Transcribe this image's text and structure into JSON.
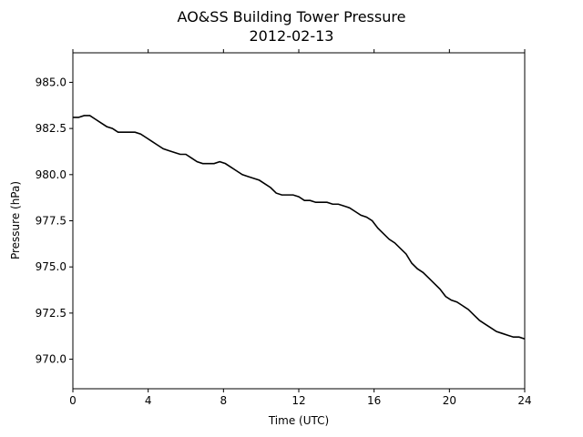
{
  "chart_data": {
    "type": "line",
    "title": "AO&SS Building Tower Pressure",
    "subtitle": "2012-02-13",
    "xlabel": "Time (UTC)",
    "ylabel": "Pressure (hPa)",
    "xlim": [
      0,
      24
    ],
    "ylim": [
      968.4,
      986.6
    ],
    "xticks": [
      0,
      4,
      8,
      12,
      16,
      20,
      24
    ],
    "xtick_labels": [
      "0",
      "4",
      "8",
      "12",
      "16",
      "20",
      "24"
    ],
    "yticks": [
      970.0,
      972.5,
      975.0,
      977.5,
      980.0,
      982.5,
      985.0
    ],
    "ytick_labels": [
      "970.0",
      "972.5",
      "975.0",
      "977.5",
      "980.0",
      "982.5",
      "985.0"
    ],
    "grid": false,
    "legend": "none",
    "line_color": "#000000",
    "series": [
      {
        "x": [
          0,
          0.3,
          0.6,
          0.9,
          1.2,
          1.5,
          1.8,
          2.1,
          2.4,
          2.7,
          3.0,
          3.3,
          3.6,
          3.9,
          4.2,
          4.5,
          4.8,
          5.1,
          5.4,
          5.7,
          6.0,
          6.3,
          6.6,
          6.9,
          7.2,
          7.5,
          7.8,
          8.1,
          8.4,
          8.7,
          9.0,
          9.3,
          9.6,
          9.9,
          10.2,
          10.5,
          10.8,
          11.1,
          11.4,
          11.7,
          12.0,
          12.3,
          12.6,
          12.9,
          13.2,
          13.5,
          13.8,
          14.1,
          14.4,
          14.7,
          15.0,
          15.3,
          15.6,
          15.9,
          16.2,
          16.5,
          16.8,
          17.1,
          17.4,
          17.7,
          18.0,
          18.3,
          18.6,
          18.9,
          19.2,
          19.5,
          19.8,
          20.1,
          20.4,
          20.7,
          21.0,
          21.3,
          21.6,
          21.9,
          22.2,
          22.5,
          22.8,
          23.1,
          23.4,
          23.7,
          24.0
        ],
        "values": [
          983.1,
          983.1,
          983.2,
          983.2,
          983.0,
          982.8,
          982.6,
          982.5,
          982.3,
          982.3,
          982.3,
          982.3,
          982.2,
          982.0,
          981.8,
          981.6,
          981.4,
          981.3,
          981.2,
          981.1,
          981.1,
          980.9,
          980.7,
          980.6,
          980.6,
          980.6,
          980.7,
          980.6,
          980.4,
          980.2,
          980.0,
          979.9,
          979.8,
          979.7,
          979.5,
          979.3,
          979.0,
          978.9,
          978.9,
          978.9,
          978.8,
          978.6,
          978.6,
          978.5,
          978.5,
          978.5,
          978.4,
          978.4,
          978.3,
          978.2,
          978.0,
          977.8,
          977.7,
          977.5,
          977.1,
          976.8,
          976.5,
          976.3,
          976.0,
          975.7,
          975.2,
          974.9,
          974.7,
          974.4,
          974.1,
          973.8,
          973.4,
          973.2,
          973.1,
          972.9,
          972.7,
          972.4,
          972.1,
          971.9,
          971.7,
          971.5,
          971.4,
          971.3,
          971.2,
          971.2,
          971.1
        ]
      }
    ]
  }
}
